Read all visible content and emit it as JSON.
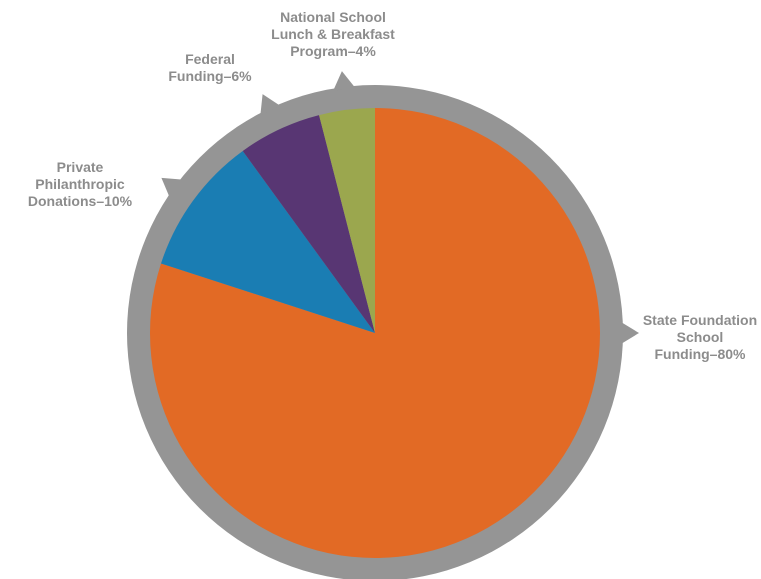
{
  "chart_data": {
    "type": "pie",
    "title": "",
    "start": "top",
    "direction": "clockwise",
    "slices": [
      {
        "label": "State Foundation School Funding–80%",
        "label_lines": [
          "State Foundation",
          "School",
          "Funding–80%"
        ],
        "value": 80,
        "color": "#e26a25"
      },
      {
        "label": "Private Philanthropic Donations–10%",
        "label_lines": [
          "Private",
          "Philanthropic",
          "Donations–10%"
        ],
        "value": 10,
        "color": "#1a7db3"
      },
      {
        "label": "Federal Funding–6%",
        "label_lines": [
          "Federal",
          "Funding–6%"
        ],
        "value": 6,
        "color": "#583673"
      },
      {
        "label": "National School Lunch & Breakfast Program–4%",
        "label_lines": [
          "National School",
          "Lunch & Breakfast",
          "Program–4%"
        ],
        "value": 4,
        "color": "#9ba74e"
      }
    ],
    "colors": {
      "ring": "#959595",
      "label_text": "#8c8c8c"
    }
  }
}
